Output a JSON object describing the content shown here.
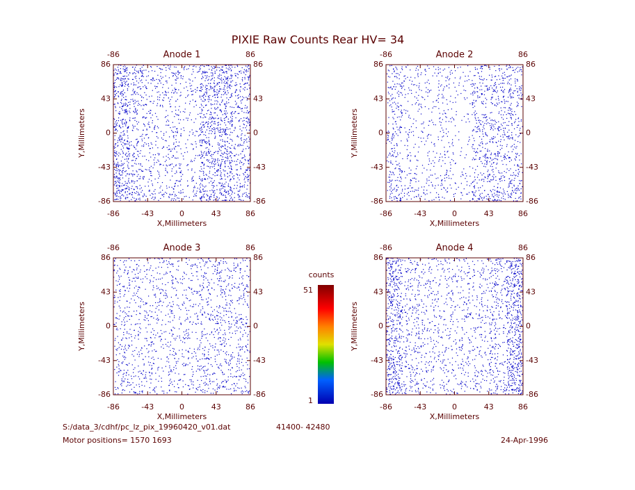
{
  "title": "PIXIE Raw Counts Rear HV= 34",
  "chart_data": [
    {
      "type": "heatmap",
      "title": "Anode 1",
      "xlabel": "X,Millimeters",
      "ylabel": "Y,Millimeters",
      "color": "#0000c8",
      "xlim": [
        -86,
        86
      ],
      "ylim": [
        -86,
        86
      ],
      "xticks": [
        -86,
        -43,
        0,
        43,
        86
      ],
      "yticks": [
        -86,
        -43,
        0,
        43,
        86
      ],
      "values": [
        [
          9,
          6,
          4,
          5,
          3,
          8,
          9,
          6
        ],
        [
          8,
          5,
          3,
          4,
          3,
          9,
          9,
          6
        ],
        [
          8,
          5,
          3,
          3,
          2,
          6,
          6,
          5
        ],
        [
          8,
          4,
          3,
          4,
          2,
          9,
          9,
          5
        ],
        [
          8,
          4,
          3,
          4,
          2,
          6,
          6,
          5
        ],
        [
          8,
          4,
          3,
          4,
          2,
          9,
          9,
          5
        ],
        [
          9,
          5,
          3,
          4,
          2,
          6,
          7,
          6
        ],
        [
          10,
          6,
          4,
          5,
          3,
          9,
          9,
          6
        ]
      ]
    },
    {
      "type": "heatmap",
      "title": "Anode 2",
      "xlabel": "X,Millimeters",
      "ylabel": "Y,Millimeters",
      "color": "#0000c8",
      "xlim": [
        -86,
        86
      ],
      "ylim": [
        -86,
        86
      ],
      "xticks": [
        -86,
        -43,
        0,
        43,
        86
      ],
      "yticks": [
        -86,
        -43,
        0,
        43,
        86
      ],
      "values": [
        [
          4,
          3,
          2,
          3,
          2,
          4,
          4,
          5
        ],
        [
          5,
          3,
          2,
          3,
          2,
          6,
          6,
          6
        ],
        [
          4,
          2,
          2,
          2,
          1,
          4,
          4,
          4
        ],
        [
          4,
          2,
          2,
          3,
          1,
          6,
          6,
          4
        ],
        [
          4,
          2,
          2,
          2,
          1,
          4,
          4,
          4
        ],
        [
          4,
          2,
          2,
          3,
          1,
          6,
          6,
          4
        ],
        [
          5,
          3,
          2,
          3,
          2,
          4,
          5,
          5
        ],
        [
          6,
          4,
          3,
          3,
          2,
          6,
          7,
          6
        ]
      ]
    },
    {
      "type": "heatmap",
      "title": "Anode 3",
      "xlabel": "X,Millimeters",
      "ylabel": "Y,Millimeters",
      "color": "#0000c8",
      "xlim": [
        -86,
        86
      ],
      "ylim": [
        -86,
        86
      ],
      "xticks": [
        -86,
        -43,
        0,
        43,
        86
      ],
      "yticks": [
        -86,
        -43,
        0,
        43,
        86
      ],
      "values": [
        [
          4,
          3,
          3,
          3,
          3,
          4,
          4,
          4
        ],
        [
          4,
          3,
          3,
          3,
          3,
          4,
          5,
          4
        ],
        [
          3,
          3,
          3,
          3,
          3,
          3,
          4,
          3
        ],
        [
          4,
          3,
          3,
          3,
          3,
          4,
          5,
          4
        ],
        [
          3,
          3,
          3,
          3,
          3,
          3,
          4,
          3
        ],
        [
          4,
          3,
          3,
          3,
          3,
          5,
          4,
          4
        ],
        [
          4,
          3,
          3,
          3,
          3,
          4,
          4,
          4
        ],
        [
          4,
          4,
          3,
          3,
          3,
          4,
          4,
          4
        ]
      ]
    },
    {
      "type": "heatmap",
      "title": "Anode 4",
      "xlabel": "X,Millimeters",
      "ylabel": "Y,Millimeters",
      "color": "#0000c8",
      "xlim": [
        -86,
        86
      ],
      "ylim": [
        -86,
        86
      ],
      "xticks": [
        -86,
        -43,
        0,
        43,
        86
      ],
      "yticks": [
        -86,
        -43,
        0,
        43,
        86
      ],
      "values": [
        [
          9,
          4,
          3,
          3,
          3,
          3,
          5,
          10
        ],
        [
          9,
          4,
          3,
          3,
          3,
          3,
          5,
          10
        ],
        [
          8,
          4,
          3,
          3,
          3,
          3,
          4,
          9
        ],
        [
          8,
          4,
          3,
          3,
          3,
          3,
          4,
          9
        ],
        [
          8,
          4,
          3,
          3,
          3,
          3,
          4,
          9
        ],
        [
          8,
          4,
          3,
          3,
          3,
          3,
          4,
          9
        ],
        [
          9,
          4,
          3,
          3,
          3,
          3,
          5,
          10
        ],
        [
          10,
          5,
          3,
          3,
          3,
          3,
          5,
          10
        ]
      ]
    }
  ],
  "colorbar": {
    "label": "counts",
    "lim": [
      1,
      51
    ],
    "ticks": [
      1,
      51
    ]
  },
  "footer": {
    "file": "S:/data_3/cdhf/pc_lz_pix_19960420_v01.dat",
    "range": "41400- 42480",
    "motor": "Motor positions= 1570 1693",
    "date": "24-Apr-1996"
  }
}
